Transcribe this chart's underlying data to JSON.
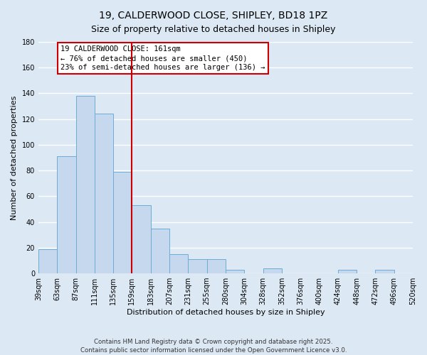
{
  "title": "19, CALDERWOOD CLOSE, SHIPLEY, BD18 1PZ",
  "subtitle": "Size of property relative to detached houses in Shipley",
  "xlabel": "Distribution of detached houses by size in Shipley",
  "ylabel": "Number of detached properties",
  "bar_color": "#c5d8ee",
  "bar_edge_color": "#6badd6",
  "background_color": "#dce9f5",
  "grid_color": "#ffffff",
  "vline_color": "#cc0000",
  "bin_labels": [
    "39sqm",
    "63sqm",
    "87sqm",
    "111sqm",
    "135sqm",
    "159sqm",
    "183sqm",
    "207sqm",
    "231sqm",
    "255sqm",
    "280sqm",
    "304sqm",
    "328sqm",
    "352sqm",
    "376sqm",
    "400sqm",
    "424sqm",
    "448sqm",
    "472sqm",
    "496sqm",
    "520sqm"
  ],
  "counts": [
    19,
    91,
    138,
    124,
    79,
    53,
    35,
    15,
    11,
    11,
    3,
    0,
    4,
    0,
    0,
    0,
    3,
    0,
    3,
    0
  ],
  "vline_bin": 5,
  "ylim": [
    0,
    180
  ],
  "yticks": [
    0,
    20,
    40,
    60,
    80,
    100,
    120,
    140,
    160,
    180
  ],
  "annotation_box_text": "19 CALDERWOOD CLOSE: 161sqm\n← 76% of detached houses are smaller (450)\n23% of semi-detached houses are larger (136) →",
  "footer_line1": "Contains HM Land Registry data © Crown copyright and database right 2025.",
  "footer_line2": "Contains public sector information licensed under the Open Government Licence v3.0.",
  "title_fontsize": 10,
  "tick_fontsize": 7,
  "ylabel_fontsize": 8,
  "xlabel_fontsize": 8,
  "annotation_fontsize": 7.5
}
